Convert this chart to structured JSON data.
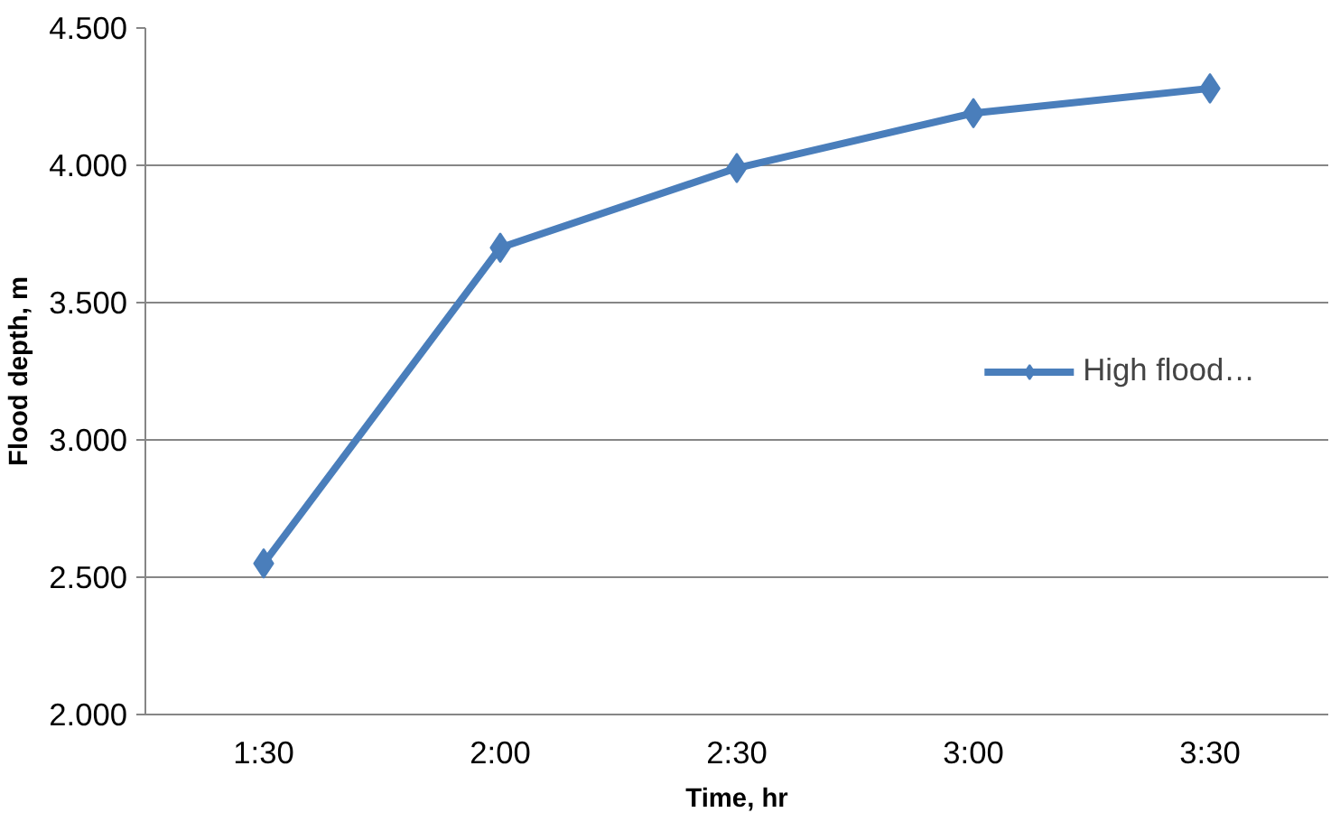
{
  "chart_data": {
    "type": "line",
    "xlabel": "Time, hr",
    "ylabel": "Flood depth, m",
    "categories": [
      "1:30",
      "2:00",
      "2:30",
      "3:00",
      "3:30"
    ],
    "series": [
      {
        "name": "High flood…",
        "color": "#4a7ebb",
        "values": [
          2.55,
          3.7,
          3.99,
          4.19,
          4.28
        ]
      }
    ],
    "ylim": [
      2.0,
      4.5
    ],
    "yticks": [
      {
        "value": 2.0,
        "label": "2.000"
      },
      {
        "value": 2.5,
        "label": "2.500"
      },
      {
        "value": 3.0,
        "label": "3.000"
      },
      {
        "value": 3.5,
        "label": "3.500"
      },
      {
        "value": 4.0,
        "label": "4.000"
      },
      {
        "value": 4.5,
        "label": "4.500"
      }
    ],
    "grid": "y",
    "legend": "right",
    "marker": "diamond",
    "line_style": "solid"
  }
}
